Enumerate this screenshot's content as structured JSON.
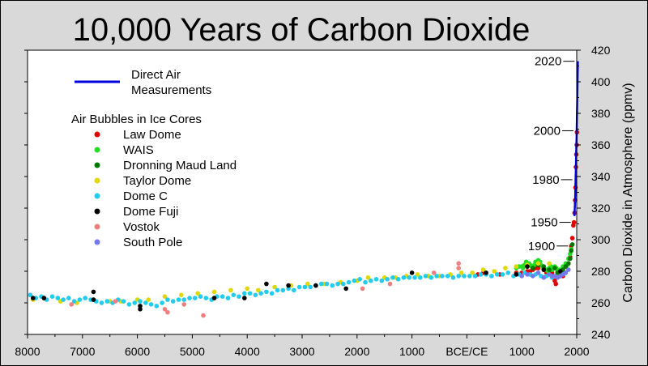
{
  "chart_data": {
    "type": "scatter",
    "title": "10,000 Years of Carbon Dioxide",
    "ylabel": "Carbon Dioxide in Atmosphere (ppmv)",
    "xlim": [
      -8000,
      2000
    ],
    "ylim": [
      240,
      420
    ],
    "x_tick_labels": [
      {
        "x": -8000,
        "label": "8000"
      },
      {
        "x": -7000,
        "label": "7000"
      },
      {
        "x": -6000,
        "label": "6000"
      },
      {
        "x": -5000,
        "label": "5000"
      },
      {
        "x": -4000,
        "label": "4000"
      },
      {
        "x": -3000,
        "label": "3000"
      },
      {
        "x": -2000,
        "label": "2000"
      },
      {
        "x": -1000,
        "label": "1000"
      },
      {
        "x": 0,
        "label": "BCE/CE"
      },
      {
        "x": 1000,
        "label": "1000"
      },
      {
        "x": 2000,
        "label": "2000"
      }
    ],
    "y_ticks": [
      240,
      260,
      280,
      300,
      320,
      340,
      360,
      380,
      400,
      420
    ],
    "legend": {
      "line_entry": "Direct Air Measurements",
      "ice_header": "Air Bubbles in Ice Cores"
    },
    "annotations": [
      {
        "label": "2020",
        "x": 2020,
        "y": 413
      },
      {
        "label": "2000",
        "x": 2000,
        "y": 369
      },
      {
        "label": "1980",
        "x": 1980,
        "y": 338
      },
      {
        "label": "1950",
        "x": 1950,
        "y": 311
      },
      {
        "label": "1900",
        "x": 1900,
        "y": 296
      }
    ],
    "line_series": {
      "name": "Direct Air Measurements",
      "color": "#0000dd",
      "x": [
        1958,
        1965,
        1970,
        1975,
        1980,
        1985,
        1990,
        1995,
        2000,
        2005,
        2010,
        2015,
        2020
      ],
      "y": [
        315,
        320,
        325,
        331,
        338,
        346,
        354,
        361,
        369,
        379,
        389,
        400,
        413
      ]
    },
    "series": [
      {
        "name": "Law Dome",
        "color": "#e00000",
        "x": [
          1000,
          1100,
          1200,
          1300,
          1400,
          1500,
          1550,
          1600,
          1650,
          1700,
          1750,
          1800,
          1850,
          1880,
          1900,
          1920,
          1940,
          1950,
          1960,
          1970,
          1978,
          1985,
          1992,
          2000,
          2004,
          1150,
          1250,
          1450,
          1620,
          900,
          200,
          300,
          600
        ],
        "y": [
          279,
          280,
          281,
          282,
          281,
          280,
          279,
          274,
          276,
          277,
          277,
          283,
          285,
          289,
          296,
          301,
          309,
          311,
          317,
          325,
          333,
          346,
          354,
          360,
          368,
          280,
          282,
          279,
          272,
          279,
          278,
          279,
          278
        ]
      },
      {
        "name": "WAIS",
        "color": "#22dd22",
        "x": [
          1000,
          1050,
          1100,
          1150,
          1200,
          1250,
          1300,
          1350,
          1400,
          1450,
          1500,
          1550,
          1600,
          1650,
          1700,
          1750,
          1800,
          1850,
          1880,
          1900,
          1020,
          1080,
          1130,
          1180,
          1230,
          1280,
          1330,
          1380,
          1430,
          1480,
          1530,
          1580,
          1630,
          1680,
          1730,
          1780,
          1830,
          1870,
          900,
          950
        ],
        "y": [
          283,
          284,
          285,
          284,
          283,
          286,
          287,
          284,
          282,
          281,
          282,
          281,
          283,
          280,
          281,
          283,
          285,
          288,
          291,
          294,
          282,
          286,
          285,
          283,
          284,
          285,
          286,
          283,
          281,
          280,
          283,
          282,
          282,
          279,
          280,
          283,
          284,
          288,
          282,
          283
        ]
      },
      {
        "name": "Dronning Maud Land",
        "color": "#007700",
        "x": [
          1100,
          1200,
          1300,
          1400,
          1500,
          1600,
          1650,
          1700,
          1750,
          1800,
          1850,
          1880,
          1900,
          1920
        ],
        "y": [
          283,
          282,
          284,
          283,
          281,
          282,
          279,
          280,
          281,
          283,
          285,
          288,
          293,
          297
        ]
      },
      {
        "name": "Taylor Dome",
        "color": "#e0d800",
        "x": [
          -7900,
          -7700,
          -7400,
          -7100,
          -6800,
          -6500,
          -6300,
          -6000,
          -5800,
          -5500,
          -5200,
          -4900,
          -4600,
          -4300,
          -4000,
          -3800,
          -3500,
          -3200,
          -2900,
          -2600,
          -2300,
          -2000,
          -1800,
          -1500,
          -1300,
          -1100,
          -900,
          -700,
          -500,
          -300,
          -100,
          100,
          300,
          500,
          700,
          900,
          1100,
          1300,
          1500
        ],
        "y": [
          262,
          263,
          261,
          260,
          262,
          261,
          261,
          262,
          262,
          264,
          265,
          266,
          267,
          268,
          269,
          268,
          270,
          271,
          272,
          272,
          273,
          274,
          276,
          276,
          276,
          277,
          278,
          277,
          277,
          278,
          279,
          279,
          281,
          280,
          282,
          283,
          284,
          285,
          285
        ]
      },
      {
        "name": "Dome C",
        "color": "#22ccee",
        "x": [
          -7950,
          -7850,
          -7750,
          -7650,
          -7550,
          -7450,
          -7350,
          -7250,
          -7150,
          -7050,
          -6950,
          -6850,
          -6750,
          -6650,
          -6550,
          -6450,
          -6350,
          -6250,
          -6150,
          -6050,
          -5950,
          -5850,
          -5750,
          -5650,
          -5550,
          -5450,
          -5350,
          -5250,
          -5150,
          -5050,
          -4950,
          -4850,
          -4750,
          -4650,
          -4550,
          -4450,
          -4350,
          -4250,
          -4150,
          -4050,
          -3950,
          -3850,
          -3750,
          -3650,
          -3550,
          -3450,
          -3350,
          -3250,
          -3150,
          -3050,
          -2950,
          -2850,
          -2750,
          -2650,
          -2550,
          -2450,
          -2350,
          -2250,
          -2150,
          -2050,
          -1950,
          -1850,
          -1750,
          -1650,
          -1550,
          -1450,
          -1350,
          -1250,
          -1150,
          -1050,
          -950,
          -850,
          -750,
          -650,
          -550,
          -450,
          -350,
          -250,
          -150,
          -50,
          50,
          150,
          250,
          350,
          450,
          550,
          650,
          750,
          850,
          950,
          1050,
          1150,
          1250,
          1350,
          1450,
          1550
        ],
        "y": [
          265,
          263,
          264,
          262,
          264,
          263,
          262,
          263,
          261,
          262,
          263,
          262,
          261,
          260,
          261,
          260,
          262,
          261,
          259,
          260,
          261,
          260,
          259,
          258,
          260,
          262,
          261,
          262,
          262,
          263,
          263,
          264,
          263,
          262,
          264,
          264,
          263,
          265,
          264,
          266,
          266,
          265,
          266,
          267,
          266,
          268,
          268,
          269,
          268,
          270,
          270,
          270,
          271,
          272,
          272,
          271,
          272,
          272,
          273,
          274,
          275,
          273,
          274,
          275,
          274,
          275,
          276,
          275,
          276,
          276,
          276,
          276,
          277,
          276,
          277,
          277,
          277,
          276,
          277,
          277,
          277,
          277,
          278,
          278,
          277,
          278,
          278,
          279,
          277,
          278,
          279,
          278,
          278,
          277,
          277,
          276
        ]
      },
      {
        "name": "Dome Fuji",
        "color": "#000000",
        "x": [
          -7900,
          -7700,
          -6800,
          -6800,
          -5950,
          -5950,
          -4600,
          -4050,
          -3650,
          -3250,
          -2750,
          -2200,
          -1000,
          350,
          1100,
          1400,
          1700,
          900
        ],
        "y": [
          263,
          263,
          262,
          267,
          258,
          256,
          263,
          263,
          272,
          271,
          271,
          269,
          279,
          279,
          283,
          281,
          280,
          278
        ]
      },
      {
        "name": "Vostok",
        "color": "#f08080",
        "x": [
          -7200,
          -6400,
          -5500,
          -5450,
          -5150,
          -4800,
          -1900,
          -1400,
          -600,
          -150,
          -150
        ],
        "y": [
          259,
          261,
          256,
          254,
          259,
          252,
          269,
          272,
          279,
          282,
          285
        ]
      },
      {
        "name": "South Pole",
        "color": "#7777ee",
        "x": [
          1000,
          1100,
          1200,
          1300,
          1400,
          1500,
          1550,
          1600,
          1650,
          1700,
          1750,
          1800,
          1850
        ],
        "y": [
          277,
          278,
          277,
          279,
          276,
          278,
          277,
          277,
          276,
          277,
          278,
          279,
          281
        ]
      }
    ]
  }
}
